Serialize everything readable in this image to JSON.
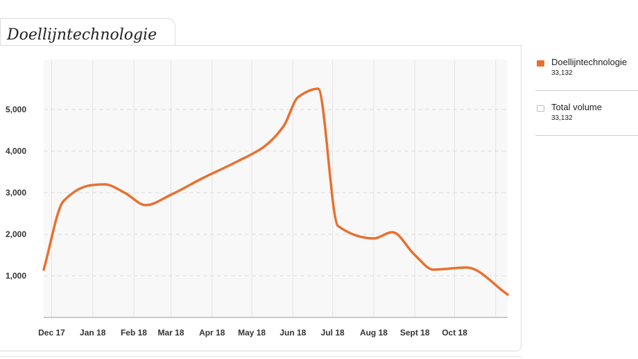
{
  "panel": {
    "title": "Doellijntechnologie"
  },
  "legend": [
    {
      "name": "Doellijntechnologie",
      "value": "33,132",
      "color": "#e8702f"
    },
    {
      "name": "Total volume",
      "value": "33,132",
      "color": "#ffffff",
      "border": "#bbbbbb"
    }
  ],
  "chart_data": {
    "type": "line",
    "title": "Doellijntechnologie",
    "xlabel": "",
    "ylabel": "",
    "x_tick_labels": [
      "Dec 17",
      "Jan 18",
      "Feb 18",
      "Mar 18",
      "Apr 18",
      "May 18",
      "Jun 18",
      "Jul 18",
      "Aug 18",
      "Sept 18",
      "Oct 18"
    ],
    "y_ticks": [
      1000,
      2000,
      3000,
      4000,
      5000
    ],
    "y_tick_labels": [
      "1,000",
      "2,000",
      "3,000",
      "4,000",
      "5,000"
    ],
    "ylim": [
      0,
      6200
    ],
    "xlim": [
      "2017-11-25",
      "2018-11-10"
    ],
    "grid": true,
    "legend_position": "right",
    "series": [
      {
        "name": "Doellijntechnologie",
        "color": "#e8702f",
        "x": [
          "2017-11-25",
          "2017-12-10",
          "2017-12-31",
          "2018-01-10",
          "2018-01-25",
          "2018-02-10",
          "2018-03-01",
          "2018-03-25",
          "2018-04-20",
          "2018-05-10",
          "2018-05-25",
          "2018-06-05",
          "2018-06-20",
          "2018-07-05",
          "2018-08-01",
          "2018-08-15",
          "2018-09-01",
          "2018-09-15",
          "2018-10-10",
          "2018-11-10"
        ],
        "values": [
          1150,
          2800,
          3180,
          3200,
          3000,
          2700,
          2950,
          3350,
          3750,
          4100,
          4600,
          5300,
          5500,
          2200,
          1900,
          2050,
          1500,
          1150,
          1200,
          550
        ]
      }
    ]
  }
}
